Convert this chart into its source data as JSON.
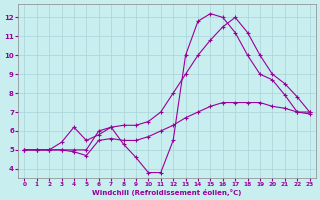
{
  "bg_color": "#c8eef0",
  "grid_color": "#a8d4d8",
  "line_color": "#990099",
  "xlabel": "Windchill (Refroidissement éolien,°C)",
  "xlim": [
    -0.5,
    23.5
  ],
  "ylim": [
    3.5,
    12.7
  ],
  "yticks": [
    4,
    5,
    6,
    7,
    8,
    9,
    10,
    11,
    12
  ],
  "xticks": [
    0,
    1,
    2,
    3,
    4,
    5,
    6,
    7,
    8,
    9,
    10,
    11,
    12,
    13,
    14,
    15,
    16,
    17,
    18,
    19,
    20,
    21,
    22,
    23
  ],
  "line1_x": [
    0,
    1,
    2,
    3,
    4,
    5,
    6,
    7,
    8,
    9,
    10,
    11,
    12,
    13,
    14,
    15,
    16,
    17,
    18,
    19,
    20,
    21,
    22,
    23
  ],
  "line1_y": [
    5,
    5,
    5,
    5,
    4.9,
    4.7,
    5.5,
    5.6,
    5.5,
    5.5,
    5.7,
    6.0,
    6.3,
    6.7,
    7.0,
    7.3,
    7.5,
    7.5,
    7.5,
    7.5,
    7.3,
    7.2,
    7.0,
    7.0
  ],
  "line2_x": [
    0,
    1,
    2,
    3,
    4,
    5,
    6,
    7,
    8,
    9,
    10,
    11,
    12,
    13,
    14,
    15,
    16,
    17,
    18,
    19,
    20,
    21,
    22,
    23
  ],
  "line2_y": [
    5,
    5,
    5,
    5.4,
    6.2,
    5.5,
    5.8,
    6.2,
    6.3,
    6.3,
    6.5,
    7.0,
    8.0,
    9.0,
    10.0,
    10.8,
    11.5,
    12.0,
    11.2,
    10.0,
    9.0,
    8.5,
    7.8,
    7.0
  ],
  "line3_x": [
    0,
    1,
    2,
    3,
    4,
    5,
    6,
    7,
    8,
    9,
    10,
    11,
    12,
    13,
    14,
    15,
    16,
    17,
    18,
    19,
    20,
    21,
    22,
    23
  ],
  "line3_y": [
    5,
    5,
    5,
    5,
    5,
    5.0,
    6.0,
    6.2,
    5.3,
    4.6,
    3.8,
    3.8,
    5.5,
    10.0,
    11.8,
    12.2,
    12.0,
    11.2,
    10.0,
    9.0,
    8.7,
    7.9,
    7.0,
    6.9
  ]
}
